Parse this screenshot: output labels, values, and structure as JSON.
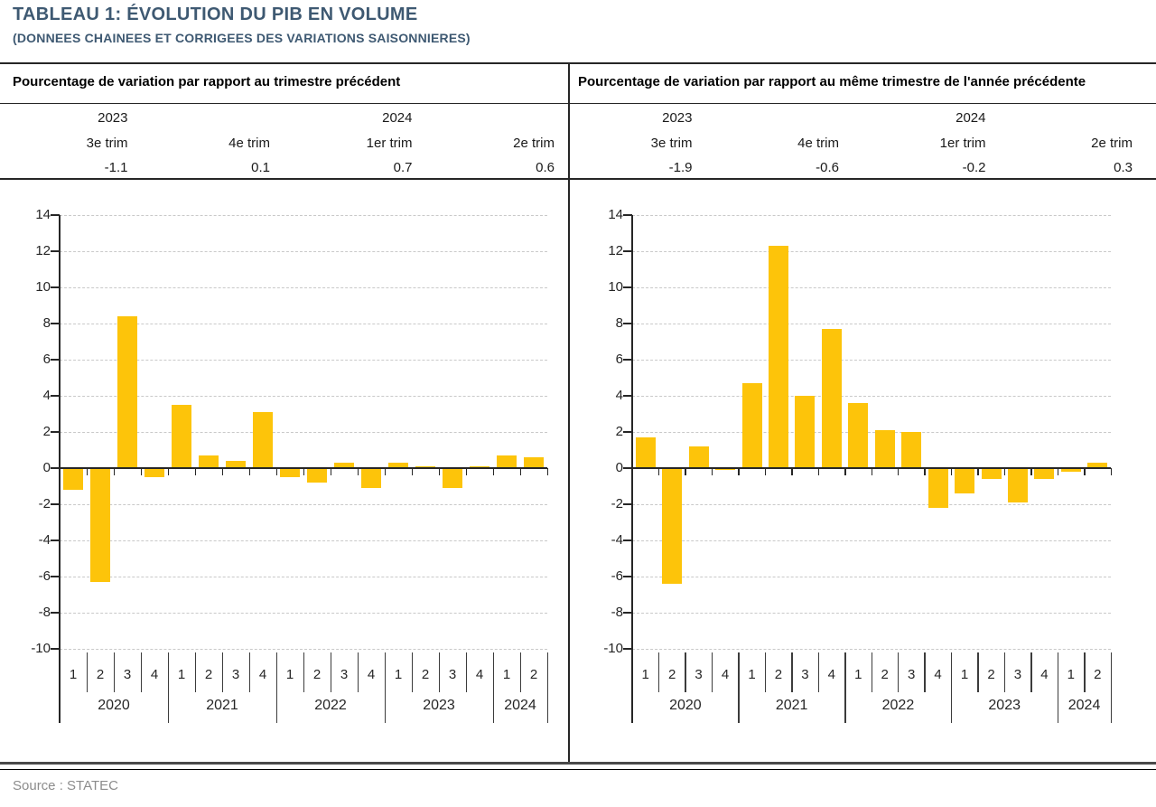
{
  "title": "TABLEAU 1: ÉVOLUTION DU PIB EN VOLUME",
  "subtitle": "(DONNEES CHAINEES ET CORRIGEES DES VARIATIONS SAISONNIERES)",
  "source": "Source : STATEC",
  "colors": {
    "bar": "#FDC40A",
    "title_text": "#3E5972",
    "grid": "#c9c9c9",
    "axis": "#262626",
    "source_text": "#8c8c8c"
  },
  "panels": [
    {
      "header": "Pourcentage de variation par rapport au trimestre précédent",
      "summary_years_row": [
        "2023",
        "",
        "2024",
        ""
      ],
      "summary_quarters": [
        "3e trim",
        "4e trim",
        "1er trim",
        "2e trim"
      ],
      "summary_values": [
        "-1.1",
        "0.1",
        "0.7",
        "0.6"
      ]
    },
    {
      "header": "Pourcentage de variation par rapport au même trimestre de l'année précédente",
      "summary_years_row": [
        "2023",
        "",
        "2024",
        ""
      ],
      "summary_quarters": [
        "3e trim",
        "4e trim",
        "1er trim",
        "2e trim"
      ],
      "summary_values": [
        "-1.9",
        "-0.6",
        "-0.2",
        "0.3"
      ]
    }
  ],
  "chart_data": [
    {
      "type": "bar",
      "title": "Pourcentage de variation par rapport au trimestre précédent",
      "ylim": [
        -10,
        14
      ],
      "ytick_step": 2,
      "grid": "dashed-horizontal",
      "legend": "none",
      "bar_color": "#FDC40A",
      "x_labels": [
        "1",
        "2",
        "3",
        "4",
        "1",
        "2",
        "3",
        "4",
        "1",
        "2",
        "3",
        "4",
        "1",
        "2",
        "3",
        "4",
        "1",
        "2"
      ],
      "year_groups": [
        {
          "label": "2020",
          "count": 4
        },
        {
          "label": "2021",
          "count": 4
        },
        {
          "label": "2022",
          "count": 4
        },
        {
          "label": "2023",
          "count": 4
        },
        {
          "label": "2024",
          "count": 2
        }
      ],
      "values": [
        -1.2,
        -6.3,
        8.4,
        -0.5,
        3.5,
        0.7,
        0.4,
        3.1,
        -0.5,
        -0.8,
        0.3,
        -1.1,
        0.3,
        0.1,
        -1.1,
        0.1,
        0.7,
        0.6
      ]
    },
    {
      "type": "bar",
      "title": "Pourcentage de variation par rapport au même trimestre de l'année précédente",
      "ylim": [
        -10,
        14
      ],
      "ytick_step": 2,
      "grid": "dashed-horizontal",
      "legend": "none",
      "bar_color": "#FDC40A",
      "x_labels": [
        "1",
        "2",
        "3",
        "4",
        "1",
        "2",
        "3",
        "4",
        "1",
        "2",
        "3",
        "4",
        "1",
        "2",
        "3",
        "4",
        "1",
        "2"
      ],
      "year_groups": [
        {
          "label": "2020",
          "count": 4
        },
        {
          "label": "2021",
          "count": 4
        },
        {
          "label": "2022",
          "count": 4
        },
        {
          "label": "2023",
          "count": 4
        },
        {
          "label": "2024",
          "count": 2
        }
      ],
      "values": [
        1.7,
        -6.4,
        1.2,
        -0.1,
        4.7,
        12.3,
        4.0,
        7.7,
        3.6,
        2.1,
        2.0,
        -2.2,
        -1.4,
        -0.6,
        -1.9,
        -0.6,
        -0.2,
        0.3
      ]
    }
  ]
}
